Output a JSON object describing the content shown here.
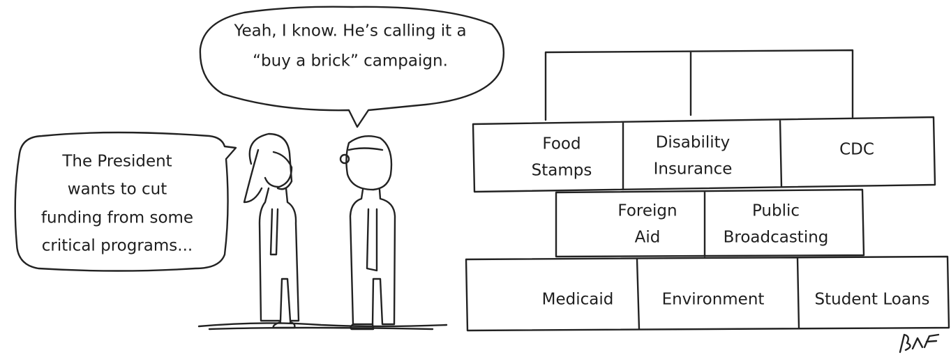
{
  "bubbles": {
    "left": [
      "The President",
      "wants to cut",
      "funding from some",
      "critical programs..."
    ],
    "right": [
      "Yeah, I know. He’s calling it a",
      "“buy a brick” campaign."
    ]
  },
  "wall": {
    "rows": [
      [
        [
          "Food",
          "Stamps"
        ],
        [
          "Disability",
          "Insurance"
        ],
        [
          "CDC"
        ]
      ],
      [
        [
          "Foreign",
          "Aid"
        ],
        [
          "Public",
          "Broadcasting"
        ]
      ],
      [
        [
          "Medicaid"
        ],
        [
          "Environment"
        ],
        [
          "Student Loans"
        ]
      ]
    ]
  }
}
